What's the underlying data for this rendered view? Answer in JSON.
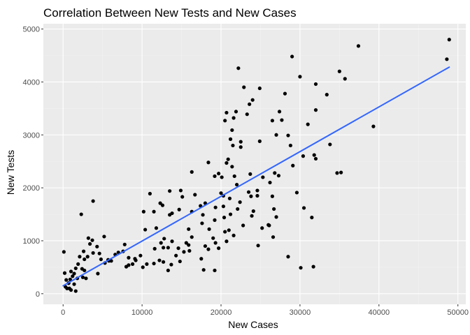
{
  "chart_data": {
    "type": "scatter",
    "title": "Correlation Between New Tests and New Cases",
    "xlabel": "New Cases",
    "ylabel": "New Tests",
    "xlim": [
      -2500,
      51000
    ],
    "ylim": [
      -200,
      5100
    ],
    "x_ticks": [
      0,
      10000,
      20000,
      30000,
      40000,
      50000
    ],
    "x_tick_labels": [
      "0",
      "10000",
      "20000",
      "30000",
      "40000",
      "50000"
    ],
    "y_ticks": [
      0,
      1000,
      2000,
      3000,
      4000,
      5000
    ],
    "y_tick_labels": [
      "0",
      "1000",
      "2000",
      "3000",
      "4000",
      "5000"
    ],
    "grid": true,
    "legend": "none",
    "colors": {
      "panel_background": "#ebebeb",
      "grid_major": "#ffffff",
      "grid_minor": "#f2f2f2",
      "points": "#000000",
      "trend_line": "#3366ff"
    },
    "series": [
      {
        "points": [
          [
            48900,
            4800
          ],
          [
            48600,
            4430
          ],
          [
            37400,
            4680
          ],
          [
            35700,
            4060
          ],
          [
            35000,
            4200
          ],
          [
            29000,
            4480
          ],
          [
            30000,
            4100
          ],
          [
            32000,
            3960
          ],
          [
            33400,
            3760
          ],
          [
            32000,
            3470
          ],
          [
            33800,
            2820
          ],
          [
            34700,
            2280
          ],
          [
            35200,
            2290
          ],
          [
            39300,
            3160
          ],
          [
            31500,
            1440
          ],
          [
            30500,
            1620
          ],
          [
            30100,
            490
          ],
          [
            31700,
            510
          ],
          [
            31000,
            3200
          ],
          [
            32000,
            2550
          ],
          [
            31800,
            2620
          ],
          [
            30400,
            2600
          ],
          [
            29100,
            2420
          ],
          [
            29600,
            1910
          ],
          [
            28500,
            2990
          ],
          [
            28800,
            2800
          ],
          [
            27000,
            3000
          ],
          [
            27300,
            2230
          ],
          [
            26800,
            2280
          ],
          [
            26200,
            2100
          ],
          [
            26500,
            1840
          ],
          [
            26700,
            1600
          ],
          [
            27000,
            1450
          ],
          [
            26600,
            1070
          ],
          [
            28500,
            700
          ],
          [
            26100,
            1290
          ],
          [
            26000,
            1300
          ],
          [
            25200,
            1240
          ],
          [
            24700,
            910
          ],
          [
            25300,
            2200
          ],
          [
            24900,
            2880
          ],
          [
            24900,
            3880
          ],
          [
            27700,
            3280
          ],
          [
            27400,
            3440
          ],
          [
            28100,
            3780
          ],
          [
            26500,
            3270
          ],
          [
            23600,
            3580
          ],
          [
            24000,
            3660
          ],
          [
            23300,
            3390
          ],
          [
            22900,
            3900
          ],
          [
            22200,
            4260
          ],
          [
            21900,
            3440
          ],
          [
            21600,
            3320
          ],
          [
            20700,
            3420
          ],
          [
            21400,
            3090
          ],
          [
            20500,
            3270
          ],
          [
            21200,
            2920
          ],
          [
            22500,
            2870
          ],
          [
            22500,
            2770
          ],
          [
            21500,
            2800
          ],
          [
            20700,
            2470
          ],
          [
            20900,
            2540
          ],
          [
            21400,
            2400
          ],
          [
            21700,
            2220
          ],
          [
            20100,
            2200
          ],
          [
            19700,
            2270
          ],
          [
            19200,
            2220
          ],
          [
            18400,
            2480
          ],
          [
            20000,
            1900
          ],
          [
            20300,
            1850
          ],
          [
            21100,
            1800
          ],
          [
            22000,
            2060
          ],
          [
            23700,
            2260
          ],
          [
            23500,
            1920
          ],
          [
            23800,
            1840
          ],
          [
            24600,
            1850
          ],
          [
            24600,
            1950
          ],
          [
            24100,
            1560
          ],
          [
            23900,
            1470
          ],
          [
            22400,
            1730
          ],
          [
            22100,
            1600
          ],
          [
            21200,
            1500
          ],
          [
            20300,
            1650
          ],
          [
            20400,
            1440
          ],
          [
            19300,
            1630
          ],
          [
            19200,
            1390
          ],
          [
            18000,
            1710
          ],
          [
            17400,
            1660
          ],
          [
            16300,
            2300
          ],
          [
            16700,
            1870
          ],
          [
            16300,
            1550
          ],
          [
            15900,
            1220
          ],
          [
            16300,
            1070
          ],
          [
            17700,
            1490
          ],
          [
            18500,
            1220
          ],
          [
            17600,
            1330
          ],
          [
            18400,
            840
          ],
          [
            18000,
            900
          ],
          [
            17500,
            660
          ],
          [
            19300,
            960
          ],
          [
            19700,
            860
          ],
          [
            20700,
            990
          ],
          [
            20500,
            1170
          ],
          [
            21000,
            1200
          ],
          [
            22800,
            1290
          ],
          [
            21600,
            1100
          ],
          [
            19000,
            1050
          ],
          [
            17800,
            450
          ],
          [
            19200,
            440
          ],
          [
            14900,
            1950
          ],
          [
            15100,
            1830
          ],
          [
            13500,
            1940
          ],
          [
            14700,
            1590
          ],
          [
            13800,
            1520
          ],
          [
            13500,
            1490
          ],
          [
            12600,
            1670
          ],
          [
            12300,
            1710
          ],
          [
            11500,
            1550
          ],
          [
            10200,
            1550
          ],
          [
            11000,
            1890
          ],
          [
            11800,
            1240
          ],
          [
            10400,
            1210
          ],
          [
            11600,
            850
          ],
          [
            12700,
            870
          ],
          [
            13300,
            870
          ],
          [
            12400,
            960
          ],
          [
            12800,
            1040
          ],
          [
            13800,
            990
          ],
          [
            14600,
            860
          ],
          [
            15300,
            790
          ],
          [
            16000,
            810
          ],
          [
            15900,
            920
          ],
          [
            15600,
            960
          ],
          [
            14300,
            720
          ],
          [
            14800,
            610
          ],
          [
            13700,
            550
          ],
          [
            13300,
            440
          ],
          [
            12200,
            630
          ],
          [
            11500,
            570
          ],
          [
            10600,
            560
          ],
          [
            10100,
            500
          ],
          [
            9800,
            720
          ],
          [
            9200,
            630
          ],
          [
            8800,
            560
          ],
          [
            8300,
            680
          ],
          [
            8000,
            510
          ],
          [
            7800,
            930
          ],
          [
            7600,
            800
          ],
          [
            7000,
            780
          ],
          [
            6600,
            740
          ],
          [
            5800,
            620
          ],
          [
            5200,
            1080
          ],
          [
            4300,
            890
          ],
          [
            4600,
            760
          ],
          [
            4800,
            650
          ],
          [
            3800,
            1750
          ],
          [
            3200,
            1050
          ],
          [
            3700,
            1010
          ],
          [
            3400,
            940
          ],
          [
            3800,
            770
          ],
          [
            3100,
            700
          ],
          [
            2700,
            650
          ],
          [
            2600,
            800
          ],
          [
            2300,
            1500
          ],
          [
            2100,
            700
          ],
          [
            1900,
            560
          ],
          [
            1600,
            480
          ],
          [
            2400,
            470
          ],
          [
            2700,
            440
          ],
          [
            2500,
            310
          ],
          [
            1800,
            290
          ],
          [
            1400,
            380
          ],
          [
            1200,
            330
          ],
          [
            1000,
            420
          ],
          [
            900,
            270
          ],
          [
            700,
            200
          ],
          [
            400,
            260
          ],
          [
            300,
            130
          ],
          [
            500,
            100
          ],
          [
            800,
            100
          ],
          [
            1000,
            70
          ],
          [
            1400,
            180
          ],
          [
            1600,
            50
          ],
          [
            4400,
            380
          ],
          [
            5300,
            580
          ],
          [
            5700,
            640
          ],
          [
            6100,
            620
          ],
          [
            100,
            790
          ],
          [
            200,
            390
          ],
          [
            700,
            200
          ],
          [
            2900,
            290
          ],
          [
            8300,
            540
          ],
          [
            9100,
            660
          ],
          [
            12700,
            600
          ]
        ]
      }
    ],
    "trend_line": {
      "type": "linear",
      "x": [
        0,
        48900
      ],
      "y": [
        150,
        4280
      ]
    }
  }
}
